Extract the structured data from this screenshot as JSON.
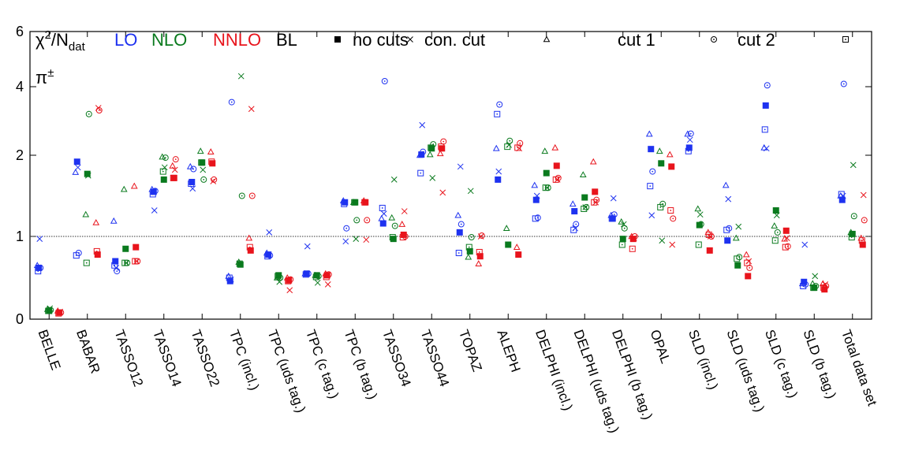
{
  "chart_data": {
    "type": "scatter",
    "title_parts": [
      "χ",
      "2",
      "/N",
      "dat"
    ],
    "annotation_parts": [
      "π",
      "±"
    ],
    "categories": [
      "BELLE",
      "BABAR",
      "TASSO12",
      "TASSO14",
      "TASSO22",
      "TPC (incl.)",
      "TPC (uds tag.)",
      "TPC (c tag.)",
      "TPC (b tag.)",
      "TASSO34",
      "TASSO44",
      "TOPAZ",
      "ALEPH",
      "DELPHI (incl.)",
      "DELPHI (uds tag.)",
      "DELPHI (b tag.)",
      "OPAL",
      "SLD (incl.)",
      "SLD (uds tag.)",
      "SLD (c tag.)",
      "SLD (b tag.)",
      "Total data set"
    ],
    "cuts": [
      {
        "name": "BL",
        "marker": "filled-square"
      },
      {
        "name": "no cuts",
        "marker": "cross"
      },
      {
        "name": "con. cut",
        "marker": "triangle"
      },
      {
        "name": "cut 1",
        "marker": "dotted-circle"
      },
      {
        "name": "cut 2",
        "marker": "dotted-square"
      }
    ],
    "series": [
      {
        "name": "LO",
        "color": "#1e32f0",
        "values": [
          [
            0.62,
            1.92,
            0.7,
            1.55,
            1.67,
            0.46,
            0.78,
            0.55,
            1.42,
            1.16,
            2.02,
            1.05,
            1.7,
            1.45,
            1.31,
            1.22,
            2.18,
            2.22,
            0.95,
            3.45,
            0.45,
            1.45
          ],
          [
            0.97,
            1.85,
            0.62,
            1.32,
            1.59,
            0.48,
            1.05,
            0.88,
            0.94,
            1.28,
            2.88,
            1.86,
            1.8,
            1.5,
            1.1,
            1.47,
            1.26,
            2.45,
            1.46,
            2.2,
            0.9,
            1.5
          ],
          [
            0.65,
            1.79,
            1.19,
            1.58,
            1.86,
            0.52,
            0.8,
            0.55,
            1.44,
            1.22,
            2.0,
            1.26,
            2.2,
            1.63,
            1.4,
            1.26,
            2.62,
            2.62,
            1.63,
            2.22,
            0.43,
            1.5
          ],
          [
            0.62,
            0.8,
            0.58,
            1.56,
            1.83,
            3.55,
            0.77,
            0.55,
            1.1,
            4.2,
            2.1,
            1.15,
            3.48,
            1.23,
            1.15,
            1.27,
            1.8,
            2.63,
            1.1,
            4.05,
            0.42,
            4.1
          ],
          [
            0.58,
            0.77,
            0.65,
            1.52,
            1.65,
            0.5,
            0.76,
            0.54,
            1.4,
            1.35,
            1.78,
            0.8,
            3.2,
            1.22,
            1.08,
            1.22,
            1.62,
            2.12,
            1.08,
            2.75,
            0.4,
            1.52
          ]
        ]
      },
      {
        "name": "NLO",
        "color": "#0a7a1e",
        "values": [
          [
            0.1,
            1.77,
            0.85,
            1.7,
            1.91,
            0.66,
            0.53,
            0.53,
            1.42,
            0.97,
            2.2,
            0.82,
            0.9,
            1.78,
            1.48,
            0.97,
            1.9,
            1.14,
            0.65,
            1.32,
            0.38,
            1.03
          ],
          [
            0.13,
            1.75,
            0.68,
            1.85,
            1.82,
            4.38,
            0.45,
            0.44,
            0.97,
            1.7,
            1.72,
            1.56,
            2.3,
            1.6,
            1.36,
            1.15,
            0.95,
            1.27,
            1.12,
            1.26,
            0.52,
            1.88
          ],
          [
            0.12,
            1.27,
            1.58,
            1.98,
            2.12,
            0.69,
            0.5,
            0.53,
            1.42,
            1.23,
            2.02,
            0.75,
            1.1,
            2.12,
            1.76,
            1.18,
            2.12,
            1.34,
            0.98,
            1.13,
            0.43,
            1.05
          ],
          [
            0.11,
            3.2,
            0.68,
            1.97,
            1.7,
            1.5,
            0.5,
            0.52,
            1.2,
            1.13,
            2.32,
            0.99,
            2.42,
            1.6,
            1.36,
            1.1,
            1.4,
            1.15,
            0.75,
            1.05,
            0.4,
            1.25
          ],
          [
            0.1,
            0.68,
            0.68,
            1.8,
            1.91,
            0.67,
            0.52,
            0.51,
            1.42,
            0.99,
            2.22,
            0.87,
            2.25,
            1.6,
            1.34,
            0.9,
            1.36,
            0.9,
            0.73,
            0.95,
            0.38,
            0.99
          ]
        ]
      },
      {
        "name": "NNLO",
        "color": "#e8141c",
        "values": [
          [
            0.08,
            0.78,
            0.87,
            1.72,
            1.9,
            0.83,
            0.47,
            0.53,
            1.42,
            1.02,
            2.2,
            0.76,
            0.78,
            1.87,
            1.55,
            0.97,
            1.86,
            0.83,
            0.52,
            1.07,
            0.36,
            0.9
          ],
          [
            0.09,
            3.38,
            0.7,
            1.82,
            1.68,
            3.35,
            0.35,
            0.42,
            0.96,
            1.31,
            1.54,
            1.0,
            2.2,
            1.7,
            1.42,
            0.98,
            0.9,
            1.0,
            0.7,
            0.98,
            0.42,
            1.51
          ],
          [
            0.1,
            1.17,
            1.62,
            1.87,
            2.1,
            0.98,
            0.5,
            0.55,
            1.44,
            1.15,
            2.05,
            0.67,
            0.87,
            2.22,
            1.92,
            1.0,
            2.02,
            1.05,
            0.78,
            0.97,
            0.43,
            0.98
          ],
          [
            0.08,
            3.31,
            0.7,
            1.95,
            1.7,
            1.5,
            0.48,
            0.54,
            1.2,
            1.0,
            2.4,
            1.01,
            2.35,
            1.72,
            1.45,
            1.0,
            1.22,
            1.0,
            0.62,
            0.88,
            0.4,
            1.2
          ],
          [
            0.07,
            0.82,
            0.7,
            1.72,
            1.92,
            0.87,
            0.46,
            0.51,
            1.42,
            0.99,
            2.25,
            0.81,
            2.22,
            1.7,
            1.42,
            0.85,
            1.32,
            1.02,
            0.68,
            0.87,
            0.38,
            0.95
          ]
        ]
      }
    ],
    "yscale": "piecewise",
    "ylim": [
      0,
      6
    ],
    "yticks": [
      0,
      1,
      2,
      4,
      6
    ],
    "refline": 1
  }
}
